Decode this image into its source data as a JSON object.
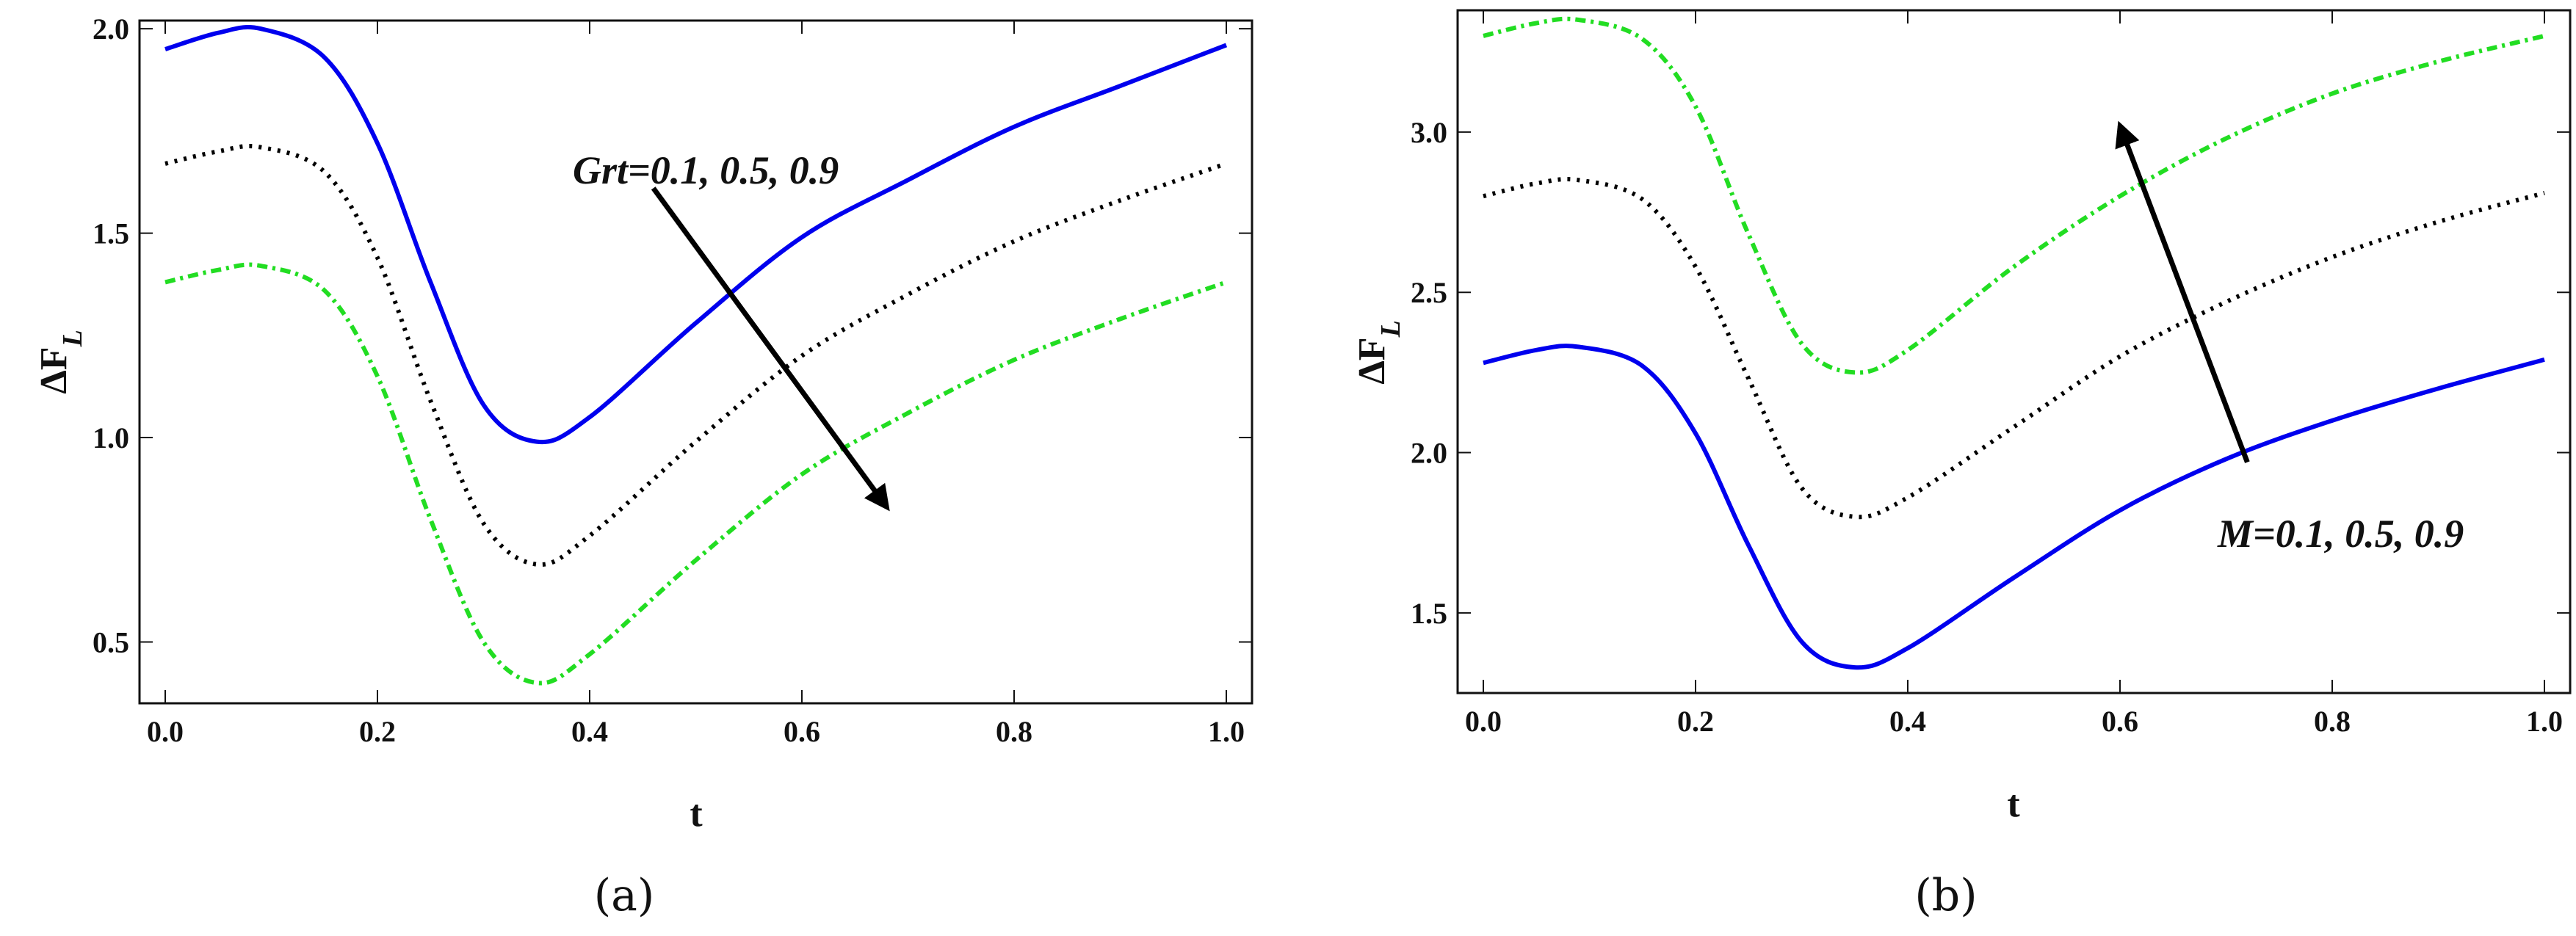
{
  "chart_data": [
    {
      "panel": "a",
      "type": "line",
      "caption": "(a)",
      "xlabel": "t",
      "ylabel_main": "ΔF",
      "ylabel_sub": "L",
      "xlim": [
        0,
        1
      ],
      "ylim": [
        0.35,
        2.02
      ],
      "xticks": [
        0,
        0.2,
        0.4,
        0.6,
        0.8,
        1.0
      ],
      "xtick_labels": [
        "0.0",
        "0.2",
        "0.4",
        "0.6",
        "0.8",
        "1.0"
      ],
      "yticks": [
        0.5,
        1.0,
        1.5,
        2.0
      ],
      "ytick_labels": [
        "0.5",
        "1.0",
        "1.5",
        "2.0"
      ],
      "annotation": "Grt=0.1, 0.5, 0.9",
      "arrow": {
        "from": [
          0.46,
          1.61
        ],
        "to": [
          0.68,
          0.83
        ]
      },
      "x": [
        0,
        0.05,
        0.09,
        0.15,
        0.2,
        0.25,
        0.3,
        0.35,
        0.4,
        0.5,
        0.6,
        0.7,
        0.8,
        0.9,
        1.0
      ],
      "series": [
        {
          "name": "Grt=0.1",
          "color": "#0000ee",
          "style": "solid",
          "values": [
            1.95,
            1.99,
            2.0,
            1.93,
            1.72,
            1.38,
            1.08,
            0.99,
            1.05,
            1.28,
            1.49,
            1.63,
            1.76,
            1.86,
            1.96
          ]
        },
        {
          "name": "Grt=0.5",
          "color": "#000000",
          "style": "dotted",
          "values": [
            1.67,
            1.7,
            1.71,
            1.65,
            1.44,
            1.09,
            0.79,
            0.69,
            0.76,
            0.99,
            1.2,
            1.35,
            1.48,
            1.58,
            1.67
          ]
        },
        {
          "name": "Grt=0.9",
          "color": "#22dd22",
          "style": "dashdot",
          "values": [
            1.38,
            1.41,
            1.42,
            1.36,
            1.15,
            0.8,
            0.5,
            0.4,
            0.47,
            0.7,
            0.91,
            1.06,
            1.19,
            1.29,
            1.38
          ]
        }
      ]
    },
    {
      "panel": "b",
      "type": "line",
      "caption": "(b)",
      "xlabel": "t",
      "ylabel_main": "ΔF",
      "ylabel_sub": "L",
      "xlim": [
        0,
        1
      ],
      "ylim": [
        1.25,
        3.38
      ],
      "xticks": [
        0,
        0.2,
        0.4,
        0.6,
        0.8,
        1.0
      ],
      "xtick_labels": [
        "0.0",
        "0.2",
        "0.4",
        "0.6",
        "0.8",
        "1.0"
      ],
      "yticks": [
        1.5,
        2.0,
        2.5,
        3.0
      ],
      "ytick_labels": [
        "1.5",
        "2.0",
        "2.5",
        "3.0"
      ],
      "annotation": "M=0.1, 0.5, 0.9",
      "arrow": {
        "from": [
          0.72,
          1.97
        ],
        "to": [
          0.6,
          3.02
        ]
      },
      "x": [
        0,
        0.05,
        0.09,
        0.15,
        0.2,
        0.25,
        0.3,
        0.35,
        0.4,
        0.5,
        0.6,
        0.7,
        0.8,
        0.9,
        1.0
      ],
      "series": [
        {
          "name": "M=0.1",
          "color": "#0000ee",
          "style": "solid",
          "values": [
            2.28,
            2.32,
            2.33,
            2.27,
            2.06,
            1.71,
            1.41,
            1.33,
            1.39,
            1.61,
            1.82,
            1.98,
            2.1,
            2.2,
            2.29
          ]
        },
        {
          "name": "M=0.5",
          "color": "#000000",
          "style": "dotted",
          "values": [
            2.8,
            2.84,
            2.85,
            2.79,
            2.58,
            2.23,
            1.89,
            1.8,
            1.86,
            2.08,
            2.3,
            2.47,
            2.61,
            2.72,
            2.81
          ]
        },
        {
          "name": "M=0.9",
          "color": "#22dd22",
          "style": "dashdot",
          "values": [
            3.3,
            3.34,
            3.35,
            3.29,
            3.08,
            2.68,
            2.34,
            2.25,
            2.32,
            2.58,
            2.8,
            2.98,
            3.12,
            3.22,
            3.3
          ]
        }
      ]
    }
  ]
}
